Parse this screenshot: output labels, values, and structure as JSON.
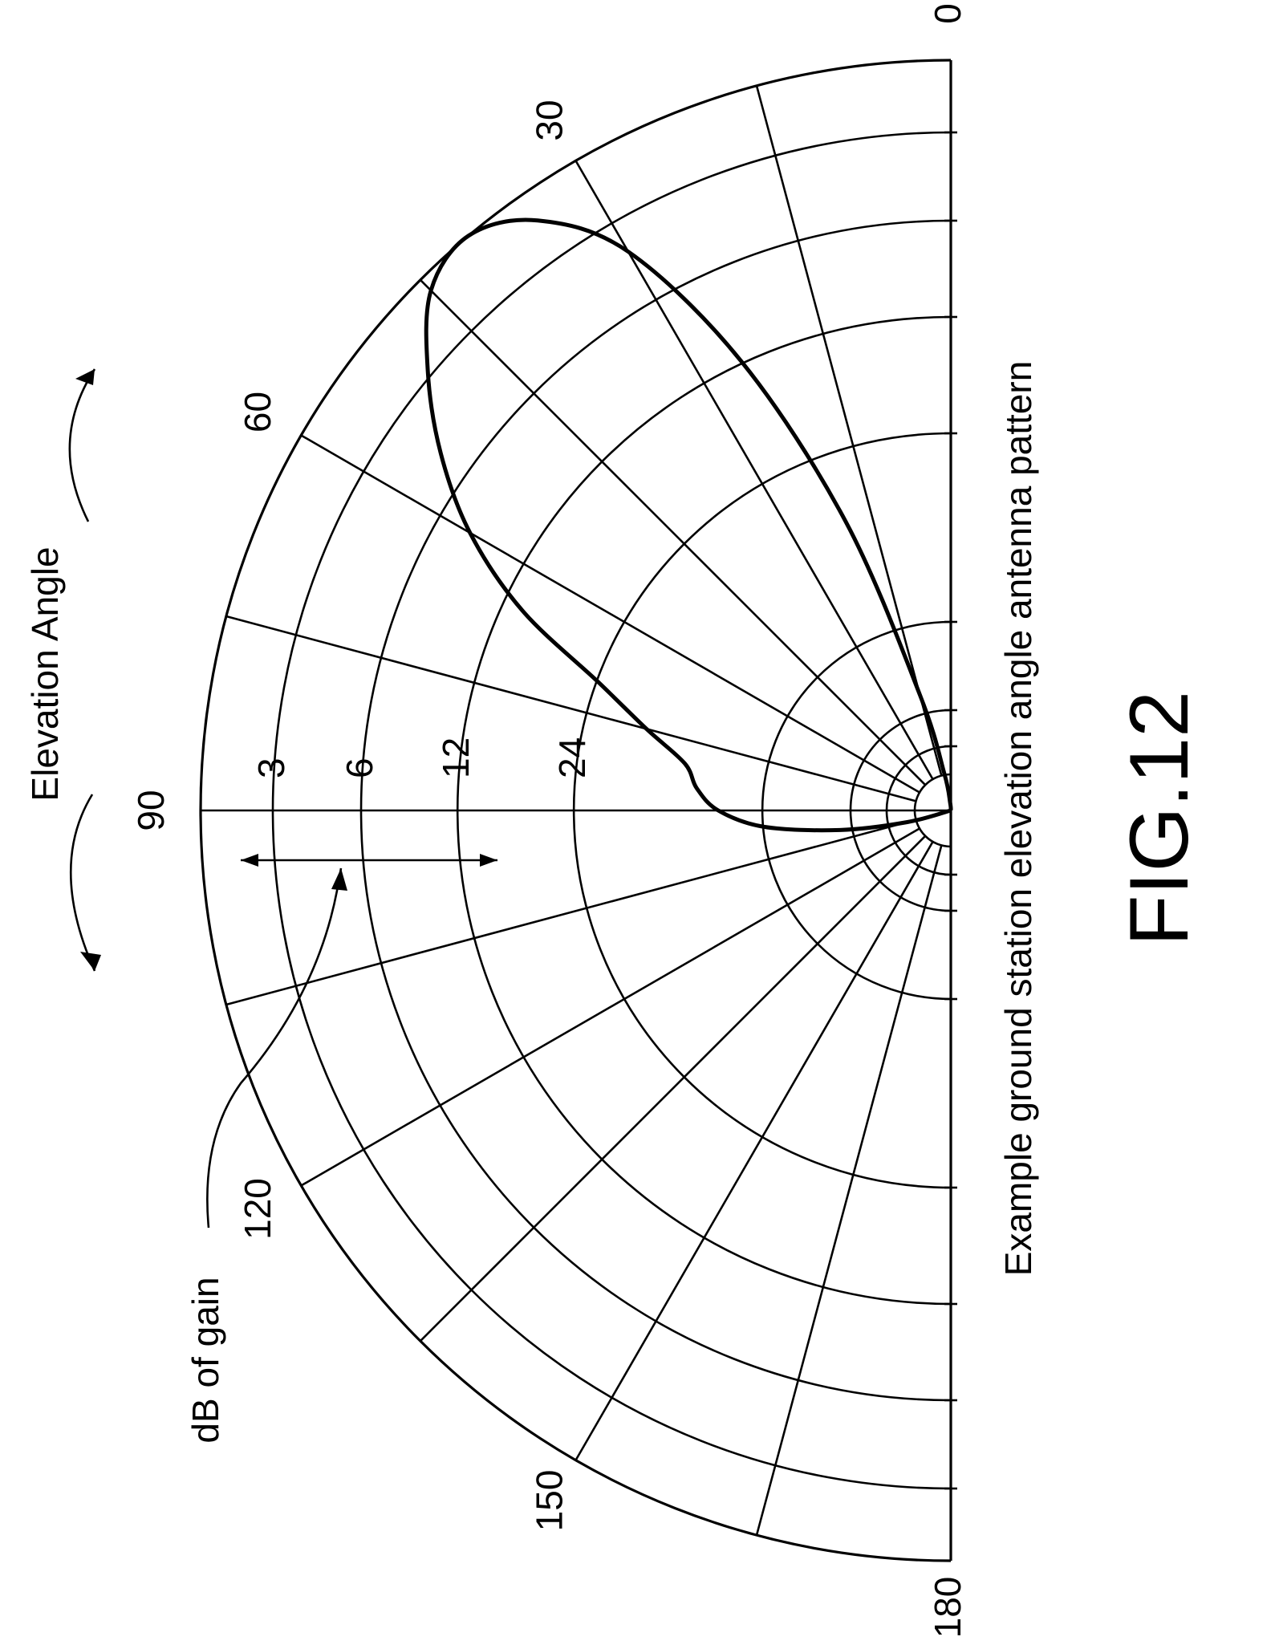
{
  "chart_data": {
    "type": "polar",
    "subtype": "semicircular elevation-angle polar plot",
    "title": "",
    "caption": "Example ground station elevation angle antenna pattern",
    "figure_label": "FIG.12",
    "angular_axis": {
      "label": "Elevation Angle",
      "range": [
        0,
        180
      ],
      "unit": "degrees",
      "tick_labels": [
        "0",
        "30",
        "60",
        "90",
        "120",
        "150",
        "180"
      ],
      "tick_values": [
        0,
        30,
        60,
        90,
        120,
        150,
        180
      ],
      "gridline_step": 15
    },
    "radial_axis": {
      "label": "dB of gain",
      "direction": "decreasing toward center",
      "tick_labels": [
        "3",
        "6",
        "12",
        "24"
      ],
      "tick_values": [
        3,
        6,
        12,
        24
      ],
      "circle_count": 8
    },
    "gain_arrow_range": [
      3,
      12
    ],
    "series": [
      {
        "angles": [
          0,
          5,
          10,
          15,
          20,
          25,
          30,
          35,
          40,
          45,
          50,
          55,
          60,
          65,
          70,
          75,
          80,
          85,
          90,
          95,
          100,
          105,
          110
        ],
        "values": [
          0,
          0.01,
          0.05,
          0.16,
          0.41,
          0.66,
          0.86,
          0.96,
          1.0,
          0.98,
          0.91,
          0.83,
          0.74,
          0.63,
          0.5,
          0.42,
          0.36,
          0.34,
          0.31,
          0.25,
          0.15,
          0.06,
          0.0
        ]
      }
    ],
    "grid": true
  }
}
